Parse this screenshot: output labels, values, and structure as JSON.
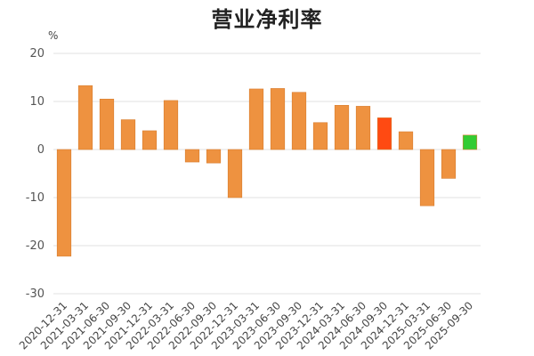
{
  "chart_data": {
    "type": "bar",
    "title": "营业净利率",
    "ylabel": "%",
    "xlabel": "",
    "ylim": [
      -30,
      20
    ],
    "yticks": [
      20,
      10,
      0,
      -10,
      -20,
      -30
    ],
    "grid": true,
    "categories": [
      "2020-12-31",
      "2021-03-31",
      "2021-06-30",
      "2021-09-30",
      "2021-12-31",
      "2022-03-31",
      "2022-06-30",
      "2022-09-30",
      "2022-12-31",
      "2023-03-31",
      "2023-06-30",
      "2023-09-30",
      "2023-12-31",
      "2024-03-31",
      "2024-06-30",
      "2024-09-30",
      "2024-12-31",
      "2025-03-31",
      "2025-06-30",
      "2025-09-30"
    ],
    "values": [
      -22.2,
      13.3,
      10.5,
      6.2,
      3.9,
      10.2,
      -2.6,
      -2.8,
      -10.0,
      12.6,
      12.7,
      11.9,
      5.6,
      9.2,
      9.0,
      6.6,
      3.7,
      -11.7,
      -6.0,
      3.0
    ],
    "colors": {
      "default": "#ee9240",
      "highlight": "#ff4a12",
      "latest": "#33cc33",
      "grid": "#e2e2e2",
      "bar_border": "#d87e30"
    },
    "highlight_index": 15,
    "latest_index": 19
  }
}
